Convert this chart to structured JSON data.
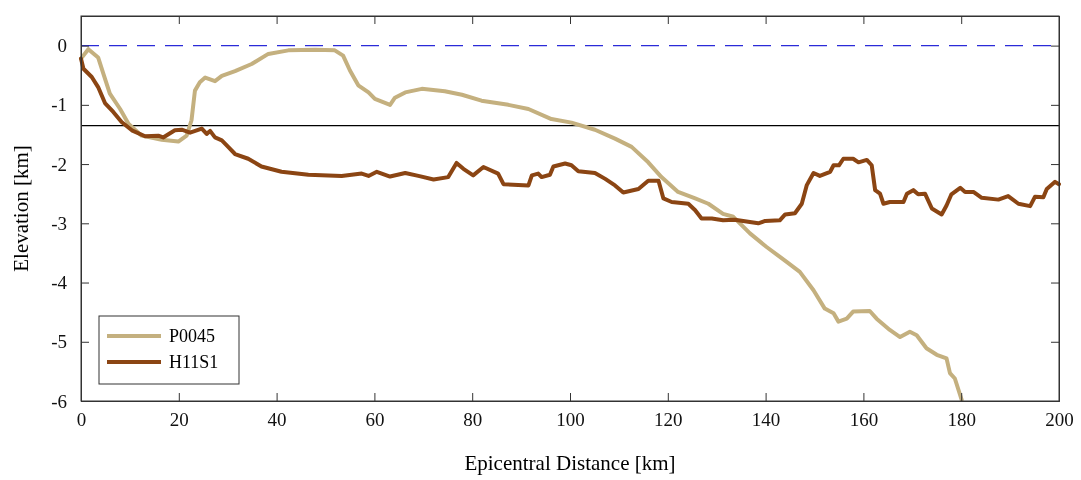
{
  "chart_data": {
    "type": "line",
    "xlabel": "Epicentral Distance [km]",
    "ylabel": "Elevation [km]",
    "xlim": [
      0,
      200
    ],
    "ylim": [
      -6,
      0.5
    ],
    "xticks": [
      0,
      20,
      40,
      60,
      80,
      100,
      120,
      140,
      160,
      180,
      200
    ],
    "yticks": [
      -6,
      -5,
      -4,
      -3,
      -2,
      -1,
      0
    ],
    "grid": false,
    "legend": "bottom left",
    "line_style": "solid",
    "ref_lines": [
      {
        "axis": "y",
        "value": 0,
        "color": "#2b2bd8",
        "line_style": "dashed"
      },
      {
        "axis": "y",
        "value": -1.35,
        "color": "#000000",
        "line_style": "solid"
      }
    ],
    "series": [
      {
        "name": "P0045",
        "color": "#c4b07f",
        "x": [
          0,
          1.5,
          3.5,
          4.6,
          5.9,
          8.0,
          9.7,
          12.4,
          16.5,
          19.9,
          21.6,
          22.6,
          23.3,
          24.3,
          25.4,
          27.4,
          28.8,
          31.5,
          34.9,
          38.3,
          42.4,
          47.9,
          51.9,
          53.6,
          55.0,
          56.7,
          58.8,
          60.1,
          63.2,
          64.2,
          66.3,
          69.7,
          74.4,
          77.9,
          81.9,
          87.4,
          91.5,
          96.2,
          100.3,
          105.1,
          109.2,
          112.6,
          116.0,
          118.7,
          122.1,
          125.6,
          128.3,
          131.3,
          133.4,
          136.8,
          140.2,
          144.3,
          147.0,
          149.8,
          152.1,
          153.9,
          154.9,
          156.6,
          157.9,
          161.3,
          162.7,
          165.4,
          167.5,
          169.5,
          170.9,
          172.9,
          175.0,
          177.0,
          177.7,
          178.7,
          180.1
        ],
        "values": [
          -0.22,
          -0.06,
          -0.2,
          -0.48,
          -0.81,
          -1.07,
          -1.32,
          -1.52,
          -1.59,
          -1.62,
          -1.52,
          -1.26,
          -0.76,
          -0.62,
          -0.54,
          -0.6,
          -0.51,
          -0.43,
          -0.31,
          -0.14,
          -0.08,
          -0.07,
          -0.08,
          -0.17,
          -0.42,
          -0.67,
          -0.79,
          -0.9,
          -1.0,
          -0.88,
          -0.79,
          -0.73,
          -0.77,
          -0.83,
          -0.93,
          -1.0,
          -1.07,
          -1.24,
          -1.3,
          -1.42,
          -1.57,
          -1.71,
          -1.97,
          -2.22,
          -2.47,
          -2.58,
          -2.67,
          -2.84,
          -2.89,
          -3.17,
          -3.4,
          -3.65,
          -3.82,
          -4.13,
          -4.44,
          -4.52,
          -4.66,
          -4.61,
          -4.49,
          -4.48,
          -4.61,
          -4.8,
          -4.92,
          -4.83,
          -4.89,
          -5.11,
          -5.22,
          -5.28,
          -5.53,
          -5.62,
          -5.98
        ]
      },
      {
        "name": "H11S1",
        "color": "#8b4513",
        "x": [
          0,
          0.5,
          2.2,
          3.5,
          4.9,
          6.6,
          8.3,
          10.4,
          13.1,
          15.8,
          16.8,
          19.2,
          20.6,
          22.3,
          24.7,
          25.7,
          26.4,
          27.4,
          28.8,
          30.1,
          31.5,
          34.2,
          36.9,
          41.0,
          46.5,
          53.3,
          57.4,
          58.8,
          60.5,
          63.2,
          66.3,
          69.0,
          72.1,
          75.1,
          76.8,
          78.2,
          80.2,
          82.3,
          85.3,
          86.4,
          91.5,
          92.2,
          93.5,
          94.2,
          95.9,
          96.6,
          99.0,
          100.3,
          101.7,
          105.1,
          107.2,
          109.2,
          110.9,
          114.0,
          116.0,
          118.1,
          119.1,
          120.8,
          124.2,
          125.6,
          126.9,
          129.0,
          131.3,
          133.7,
          138.5,
          139.9,
          142.9,
          144.0,
          146.0,
          147.4,
          148.4,
          149.8,
          151.1,
          153.2,
          153.9,
          155.0,
          155.9,
          157.9,
          159.0,
          160.7,
          161.7,
          162.4,
          163.4,
          164.1,
          165.4,
          168.2,
          168.9,
          170.2,
          171.2,
          172.6,
          174.0,
          176.0,
          177.0,
          178.0,
          179.8,
          180.8,
          182.5,
          184.2,
          187.6,
          189.6,
          191.7,
          194.1,
          195.1,
          196.8,
          197.5,
          199.2,
          200
        ],
        "values": [
          -0.22,
          -0.39,
          -0.53,
          -0.7,
          -0.97,
          -1.12,
          -1.29,
          -1.43,
          -1.53,
          -1.52,
          -1.55,
          -1.43,
          -1.42,
          -1.47,
          -1.4,
          -1.49,
          -1.44,
          -1.55,
          -1.6,
          -1.71,
          -1.83,
          -1.91,
          -2.04,
          -2.13,
          -2.18,
          -2.2,
          -2.16,
          -2.2,
          -2.13,
          -2.21,
          -2.15,
          -2.2,
          -2.26,
          -2.22,
          -1.98,
          -2.08,
          -2.19,
          -2.05,
          -2.16,
          -2.34,
          -2.36,
          -2.19,
          -2.16,
          -2.22,
          -2.18,
          -2.04,
          -1.99,
          -2.02,
          -2.12,
          -2.15,
          -2.25,
          -2.36,
          -2.48,
          -2.42,
          -2.28,
          -2.28,
          -2.58,
          -2.64,
          -2.67,
          -2.78,
          -2.92,
          -2.92,
          -2.95,
          -2.94,
          -3.0,
          -2.96,
          -2.95,
          -2.85,
          -2.83,
          -2.67,
          -2.36,
          -2.15,
          -2.2,
          -2.13,
          -2.02,
          -2.02,
          -1.91,
          -1.91,
          -1.97,
          -1.93,
          -2.02,
          -2.44,
          -2.5,
          -2.67,
          -2.64,
          -2.64,
          -2.5,
          -2.44,
          -2.51,
          -2.5,
          -2.75,
          -2.85,
          -2.7,
          -2.51,
          -2.4,
          -2.47,
          -2.47,
          -2.57,
          -2.6,
          -2.54,
          -2.67,
          -2.71,
          -2.55,
          -2.56,
          -2.42,
          -2.3,
          -2.34
        ]
      }
    ]
  }
}
